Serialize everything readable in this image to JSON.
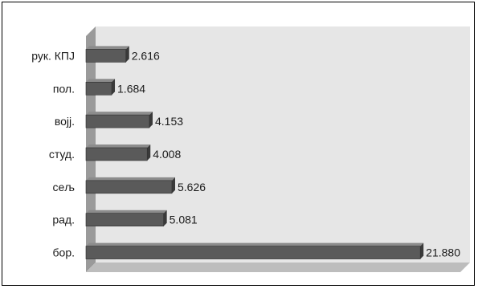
{
  "chart_data": {
    "type": "bar",
    "orientation": "horizontal",
    "title": "",
    "xlabel": "",
    "ylabel": "",
    "categories": [
      "рук. КПЈ",
      "пол.",
      "војј.",
      "студ.",
      "сељ",
      "рад.",
      "бор."
    ],
    "values": [
      2.616,
      1.684,
      4.153,
      4.008,
      5.626,
      5.081,
      21.88
    ],
    "value_labels": [
      "2.616",
      "1.684",
      "4.153",
      "4.008",
      "5.626",
      "5.081",
      "21.880"
    ],
    "xlim": [
      0,
      24.5
    ],
    "grid": false,
    "legend": "none",
    "colors": {
      "bar_front": "#5a5a5a",
      "bar_top": "#8c8c8c",
      "bar_side": "#3a3a3a",
      "wall": "#e6e6e6",
      "side_wall": "#9a9a9a",
      "floor": "#bdbdbd"
    }
  }
}
